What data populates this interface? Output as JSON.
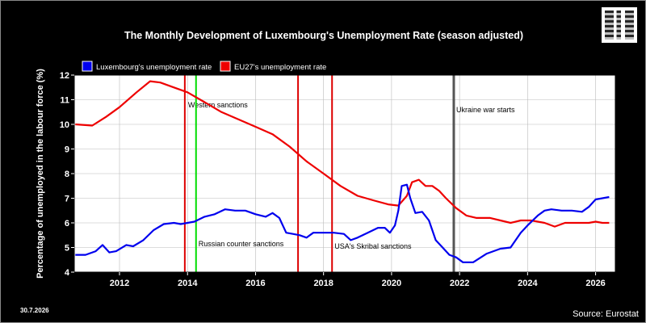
{
  "chart_data": {
    "type": "line",
    "title": "The Monthly Development of Luxembourg's Unemployment Rate (season adjusted)",
    "ylabel": "Percentage of unemployed in the labour force (%)",
    "xlabel": "",
    "xlim": [
      2010.67,
      2026.58
    ],
    "ylim": [
      4,
      12
    ],
    "yticks": [
      4,
      5,
      6,
      7,
      8,
      9,
      10,
      11,
      12
    ],
    "xticks": [
      2012,
      2014,
      2016,
      2018,
      2020,
      2022,
      2024,
      2026
    ],
    "grid": true,
    "legend_position": "top-left",
    "date_label": "30.7.2026",
    "source": "Source: Eurostat",
    "series": [
      {
        "name": "Luxembourg's unemployment rate",
        "color": "#0000ee",
        "x": [
          2010.7,
          2011.0,
          2011.3,
          2011.5,
          2011.7,
          2011.9,
          2012.2,
          2012.4,
          2012.7,
          2013.0,
          2013.3,
          2013.6,
          2013.8,
          2014.2,
          2014.5,
          2014.8,
          2015.1,
          2015.4,
          2015.7,
          2016.0,
          2016.3,
          2016.5,
          2016.7,
          2016.9,
          2017.1,
          2017.3,
          2017.5,
          2017.7,
          2018.0,
          2018.3,
          2018.6,
          2018.8,
          2019.0,
          2019.3,
          2019.6,
          2019.8,
          2019.95,
          2020.1,
          2020.2,
          2020.3,
          2020.45,
          2020.55,
          2020.7,
          2020.9,
          2021.1,
          2021.3,
          2021.5,
          2021.7,
          2021.9,
          2022.1,
          2022.4,
          2022.8,
          2023.2,
          2023.5,
          2023.8,
          2024.0,
          2024.3,
          2024.5,
          2024.7,
          2025.0,
          2025.3,
          2025.6,
          2025.8,
          2026.0,
          2026.2,
          2026.4
        ],
        "values": [
          4.7,
          4.7,
          4.85,
          5.1,
          4.8,
          4.85,
          5.1,
          5.05,
          5.3,
          5.7,
          5.95,
          6.0,
          5.95,
          6.05,
          6.25,
          6.35,
          6.55,
          6.5,
          6.5,
          6.35,
          6.25,
          6.4,
          6.2,
          5.6,
          5.55,
          5.5,
          5.4,
          5.6,
          5.6,
          5.6,
          5.55,
          5.3,
          5.4,
          5.6,
          5.8,
          5.8,
          5.6,
          5.9,
          6.5,
          7.5,
          7.55,
          7.0,
          6.4,
          6.45,
          6.1,
          5.3,
          5.0,
          4.7,
          4.6,
          4.4,
          4.4,
          4.75,
          4.95,
          5.0,
          5.6,
          5.9,
          6.3,
          6.5,
          6.55,
          6.5,
          6.5,
          6.45,
          6.65,
          6.95,
          7.0,
          7.05
        ]
      },
      {
        "name": "EU27's unemployment rate",
        "color": "#ee0000",
        "x": [
          2010.7,
          2011.2,
          2011.6,
          2012.0,
          2012.5,
          2012.9,
          2013.2,
          2013.6,
          2014.0,
          2014.5,
          2015.0,
          2015.5,
          2016.0,
          2016.5,
          2017.0,
          2017.5,
          2018.0,
          2018.5,
          2019.0,
          2019.5,
          2019.9,
          2020.2,
          2020.45,
          2020.6,
          2020.8,
          2021.0,
          2021.2,
          2021.4,
          2021.6,
          2021.9,
          2022.2,
          2022.5,
          2022.9,
          2023.2,
          2023.5,
          2023.8,
          2024.1,
          2024.5,
          2024.8,
          2025.1,
          2025.5,
          2025.8,
          2026.0,
          2026.2,
          2026.4
        ],
        "values": [
          10.0,
          9.95,
          10.3,
          10.7,
          11.3,
          11.75,
          11.7,
          11.5,
          11.3,
          10.9,
          10.5,
          10.2,
          9.9,
          9.6,
          9.1,
          8.5,
          8.0,
          7.5,
          7.1,
          6.9,
          6.75,
          6.7,
          7.1,
          7.65,
          7.75,
          7.5,
          7.5,
          7.3,
          7.0,
          6.6,
          6.3,
          6.2,
          6.2,
          6.1,
          6.0,
          6.1,
          6.1,
          6.0,
          5.85,
          6.0,
          6.0,
          6.0,
          6.05,
          6.0,
          6.0
        ]
      }
    ],
    "event_lines": [
      {
        "x": 2013.92,
        "color": "#dd0000",
        "label": "Western sanctions"
      },
      {
        "x": 2014.25,
        "color": "#00dd00",
        "label": "Russian counter sanctions"
      },
      {
        "x": 2017.25,
        "color": "#dd0000",
        "label": ""
      },
      {
        "x": 2018.25,
        "color": "#dd0000",
        "label": "USA's Skribal sanctions"
      },
      {
        "x": 2021.83,
        "color": "#555555",
        "label": "Ukraine war starts"
      }
    ]
  }
}
